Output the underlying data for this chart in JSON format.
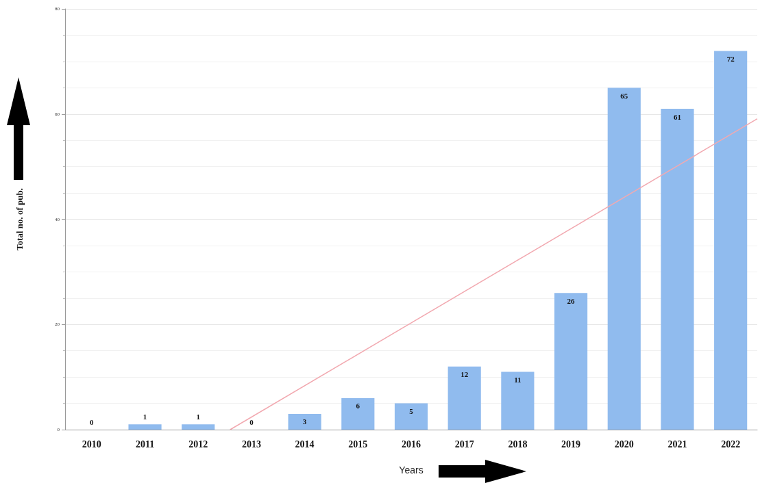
{
  "chart_data": {
    "type": "bar",
    "xlabel": "Years",
    "ylabel": "Total no. of pub.",
    "x": [
      2010,
      2011,
      2012,
      2013,
      2014,
      2015,
      2016,
      2017,
      2018,
      2019,
      2020,
      2021,
      2022
    ],
    "xlim": [
      2009.5,
      2022.5
    ],
    "xticks": [
      2010,
      2011,
      2012,
      2013,
      2014,
      2015,
      2016,
      2017,
      2018,
      2019,
      2020,
      2021,
      2022
    ],
    "series": [
      {
        "color": "#90bbee",
        "values": [
          0,
          1,
          1,
          0,
          3,
          6,
          5,
          12,
          11,
          26,
          65,
          61,
          72
        ],
        "value_labels": [
          "0",
          "1",
          "1",
          "0",
          "3",
          "6",
          "5",
          "12",
          "11",
          "26",
          "65",
          "61",
          "72"
        ]
      },
      {
        "type": "line",
        "color": "#f2a9b0",
        "x": [
          2012.6,
          2022.5
        ],
        "values": [
          0,
          59.1
        ],
        "marker": "none"
      }
    ],
    "ylim": [
      0,
      80
    ],
    "yticks": [
      0,
      20,
      40,
      60,
      80
    ],
    "grid": "y"
  }
}
